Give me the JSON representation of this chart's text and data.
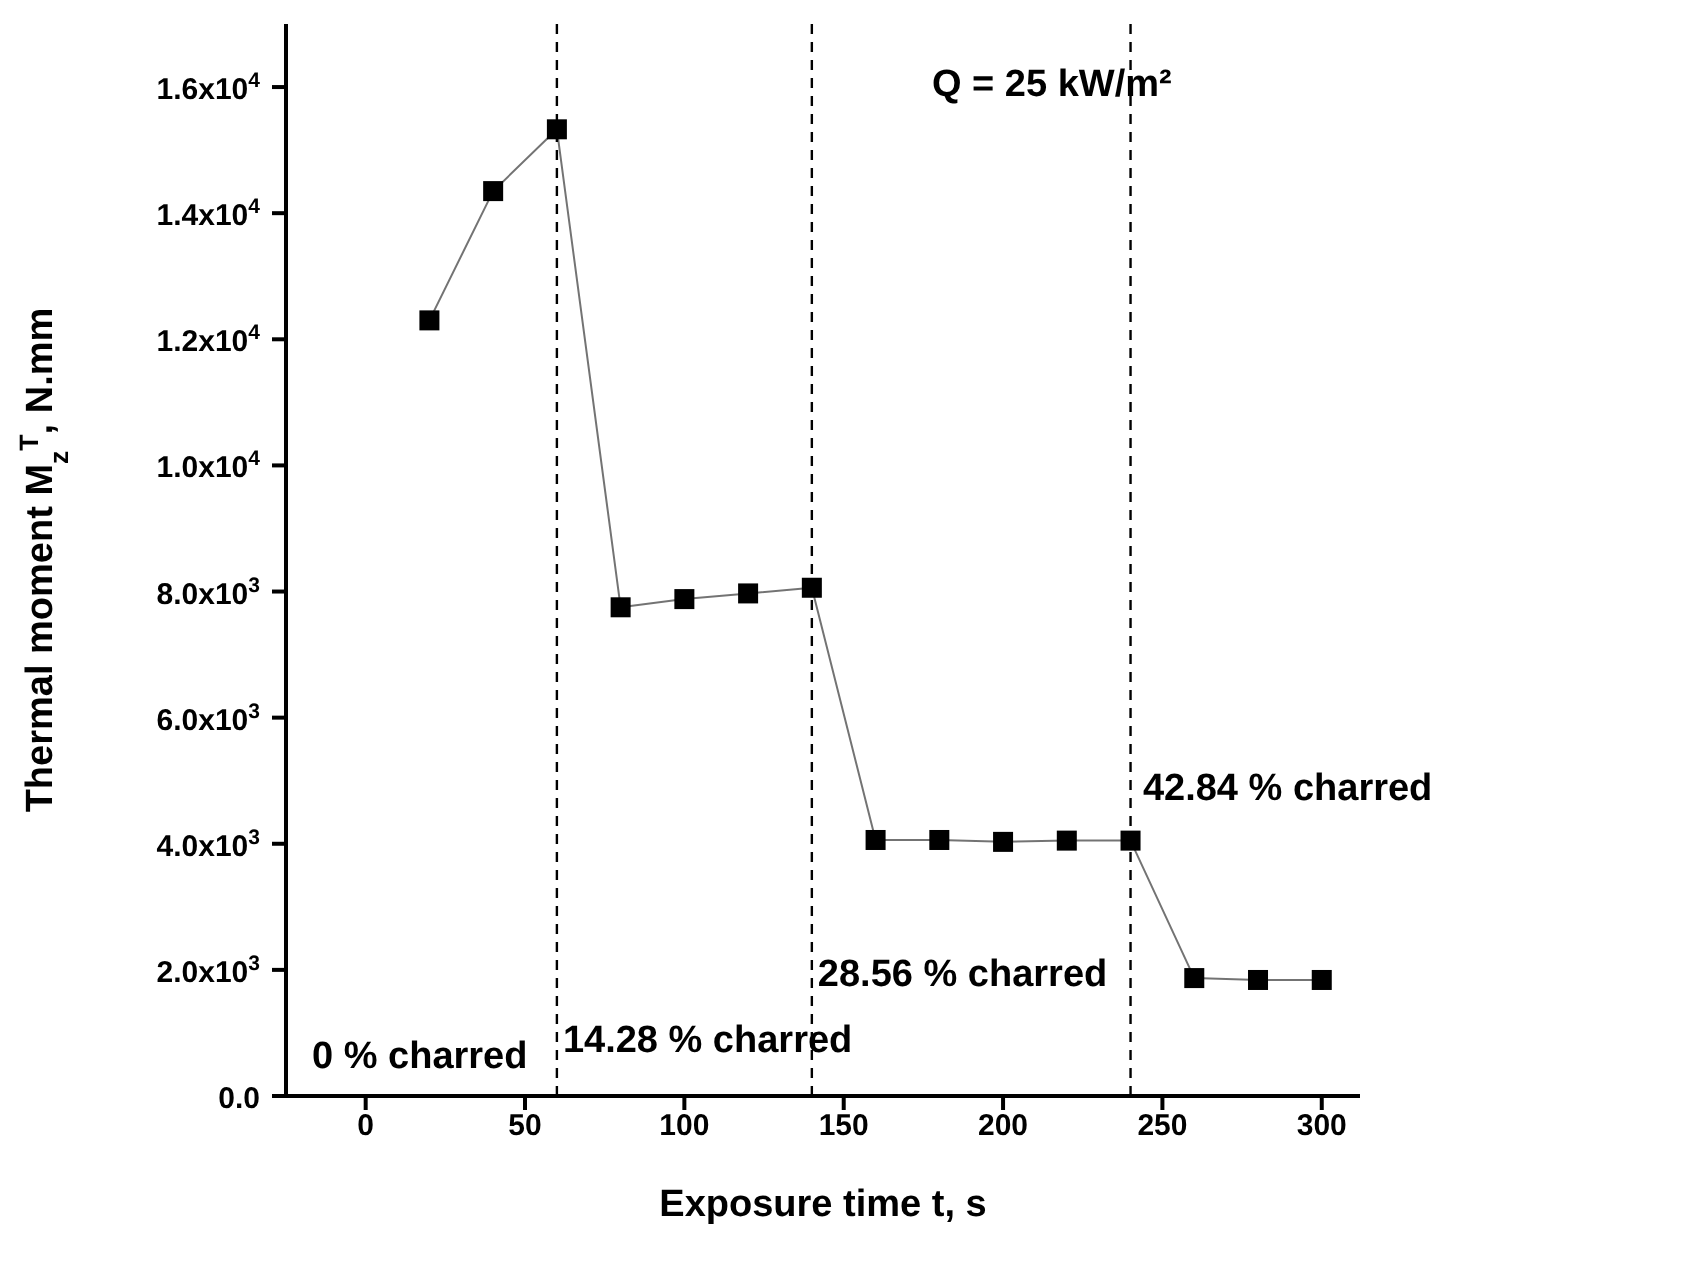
{
  "chart_data": {
    "type": "line",
    "xlabel": "Exposure time t, s",
    "ylabel": "Thermal moment M$_{z}$$^{T}$, N.mm",
    "x": [
      20,
      40,
      60,
      80,
      100,
      120,
      140,
      160,
      180,
      200,
      220,
      240,
      260,
      280,
      300
    ],
    "series": [
      {
        "color": "#000000",
        "values": [
          12300,
          14350,
          15330,
          7750,
          7880,
          7970,
          8060,
          4060,
          4060,
          4030,
          4050,
          4050,
          1870,
          1840,
          1840
        ]
      }
    ],
    "xlim": [
      -25,
      312
    ],
    "xticks": [
      0,
      50,
      100,
      150,
      200,
      250,
      300
    ],
    "ylim": [
      0,
      17000
    ],
    "yticks": [
      {
        "value": 0,
        "label": "0.0"
      },
      {
        "value": 2000,
        "label": "2.0x10$^{3}$"
      },
      {
        "value": 4000,
        "label": "4.0x10$^{3}$"
      },
      {
        "value": 6000,
        "label": "6.0x10$^{3}$"
      },
      {
        "value": 8000,
        "label": "8.0x10$^{3}$"
      },
      {
        "value": 10000,
        "label": "1.0x10$^{4}$"
      },
      {
        "value": 12000,
        "label": "1.2x10$^{4}$"
      },
      {
        "value": 14000,
        "label": "1.4x10$^{4}$"
      },
      {
        "value": 16000,
        "label": "1.6x10$^{4}$"
      }
    ],
    "ref_lines": [
      {
        "axis": "x",
        "value": 60,
        "line_style": "dashed",
        "color": "#000000"
      },
      {
        "axis": "x",
        "value": 140,
        "line_style": "dashed",
        "color": "#000000"
      },
      {
        "axis": "x",
        "value": 240,
        "line_style": "dashed",
        "color": "#000000"
      }
    ],
    "annotations": [
      "Q = 25 kW/m²",
      "0 % charred",
      {
        "text": "14.28 % charred",
        "x": 60,
        "y": 700
      },
      {
        "text": "28.56 % charred",
        "x": 140,
        "y": 1750
      },
      {
        "text": "42.84 % charred",
        "x": 242,
        "y": 4700
      }
    ],
    "marker": "square",
    "line_style": "solid"
  }
}
